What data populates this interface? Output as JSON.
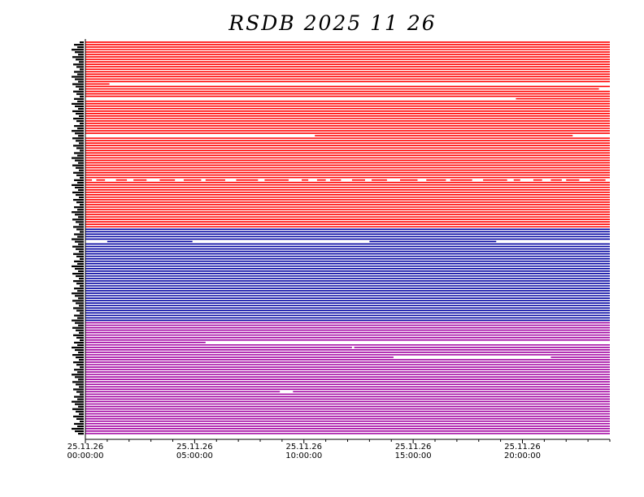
{
  "chart_data": {
    "type": "timeline",
    "title": "RSDB  2025  11  26",
    "xlabel": "",
    "ylabel": "",
    "x_range_hours": [
      0,
      24
    ],
    "x_ticks": [
      {
        "hour": 0,
        "date": "25.11.26",
        "time": "00:00:00"
      },
      {
        "hour": 5,
        "date": "25.11.26",
        "time": "05:00:00"
      },
      {
        "hour": 10,
        "date": "25.11.26",
        "time": "10:00:00"
      },
      {
        "hour": 15,
        "date": "25.11.26",
        "time": "15:00:00"
      },
      {
        "hour": 20,
        "date": "25.11.26",
        "time": "20:00:00"
      }
    ],
    "minor_tick_step_hours": 1,
    "series_groups": [
      {
        "color": "#ff0000",
        "rows": 76,
        "gaps": [
          {
            "row": 17,
            "from": 1.1,
            "to": 24
          },
          {
            "row": 19,
            "from": 23.5,
            "to": 24
          },
          {
            "row": 23,
            "from": 0,
            "to": 19.7
          },
          {
            "row": 38,
            "from": 0,
            "to": 10.5
          },
          {
            "row": 38,
            "from": 22.3,
            "to": 24
          },
          {
            "row": 56,
            "pattern": "intermittent"
          }
        ]
      },
      {
        "color": "#0000a0",
        "rows": 38,
        "gaps": [
          {
            "row": 5,
            "from": 0,
            "to": 1.0
          },
          {
            "row": 5,
            "from": 4.9,
            "to": 13.0
          },
          {
            "row": 5,
            "from": 18.8,
            "to": 24
          }
        ]
      },
      {
        "color": "#a000a0",
        "rows": 46,
        "gaps": [
          {
            "row": 8,
            "from": 5.5,
            "to": 24
          },
          {
            "row": 10,
            "from": 12.2,
            "to": 12.3
          },
          {
            "row": 14,
            "from": 14.1,
            "to": 21.3
          },
          {
            "row": 28,
            "from": 8.9,
            "to": 9.5
          }
        ]
      }
    ],
    "grid": false,
    "legend": "none"
  }
}
